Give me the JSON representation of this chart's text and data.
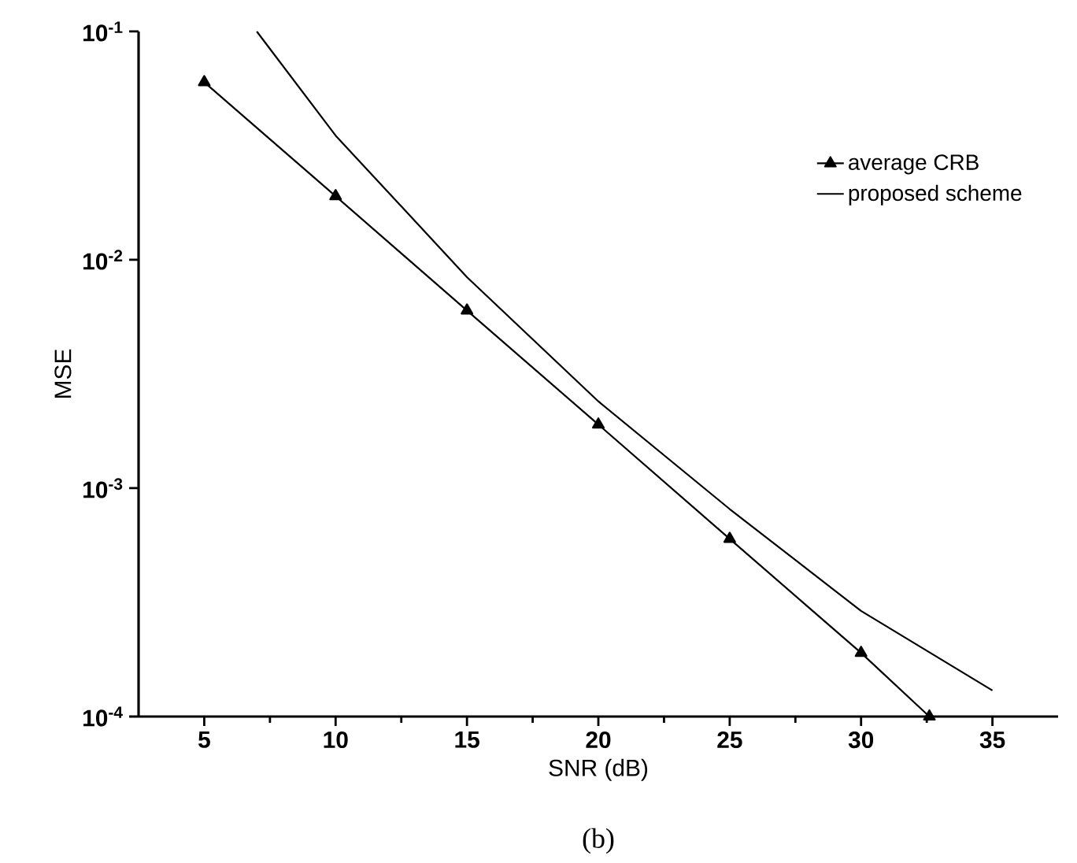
{
  "chart_data": {
    "type": "line",
    "xlabel": "SNR (dB)",
    "ylabel": "MSE",
    "log": "y",
    "xlim": [
      2.5,
      37.5
    ],
    "xticks": [
      5,
      10,
      15,
      20,
      25,
      30,
      35
    ],
    "ylim": [
      0.0001,
      0.1
    ],
    "yticks": [
      {
        "value": 0.0001,
        "label": "10$^{-4}$"
      },
      {
        "value": 0.001,
        "label": "10$^{-3}$"
      },
      {
        "value": 0.01,
        "label": "10$^{-2}$"
      },
      {
        "value": 0.1,
        "label": "10$^{-1}$"
      }
    ],
    "grid": false,
    "legend": "top right",
    "series": [
      {
        "name": "average CRB",
        "color": "#000000",
        "marker": "triangle",
        "x": [
          5,
          10,
          15,
          20,
          25,
          30,
          32.6
        ],
        "values": [
          0.06,
          0.019,
          0.006,
          0.0019,
          0.0006,
          0.00019,
          0.0001
        ]
      },
      {
        "name": "proposed scheme",
        "color": "#000000",
        "marker": "none",
        "x": [
          7,
          10,
          15,
          20,
          25,
          30,
          35
        ],
        "values": [
          0.1,
          0.035,
          0.0084,
          0.0024,
          0.00081,
          0.00029,
          0.00013
        ]
      }
    ],
    "annotations": [
      "(b)"
    ]
  }
}
